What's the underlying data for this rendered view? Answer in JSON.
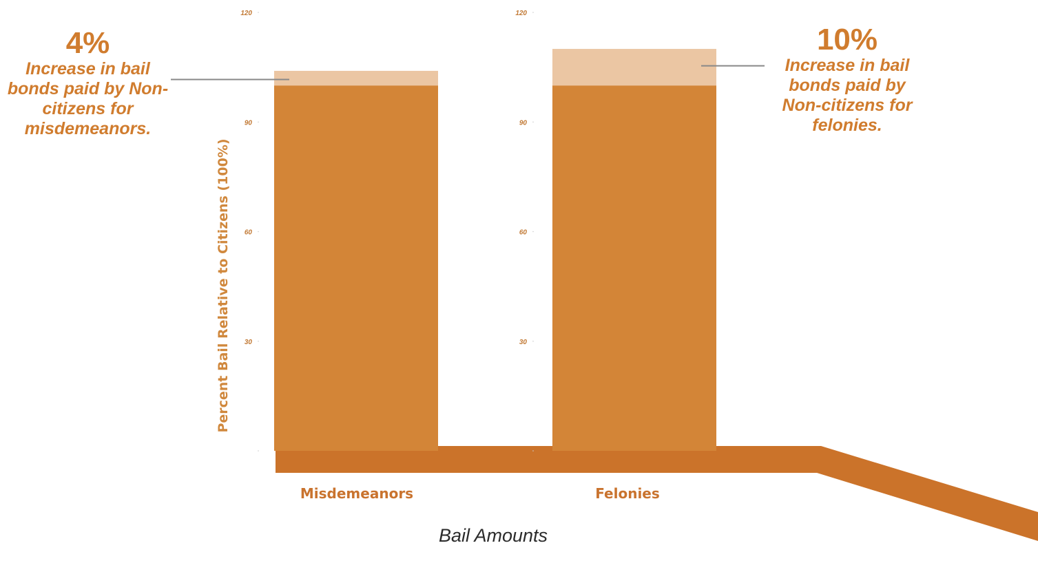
{
  "chart_data": {
    "type": "bar",
    "categories": [
      "Misdemeanors",
      "Felonies"
    ],
    "series": [
      {
        "values": [
          100,
          100
        ],
        "color": "#d38537"
      },
      {
        "values": [
          4,
          10
        ],
        "color": "#ebc6a3"
      }
    ],
    "stacked": true,
    "ylabel": "Percent Bail Relative to Citizens (100%)",
    "xlabel": "Bail Amounts",
    "ylim": [
      0,
      120
    ],
    "yticks": [
      30,
      60,
      90,
      120
    ],
    "annotations": [
      {
        "category": "Misdemeanors",
        "value": "4%",
        "text": "Increase in bail bonds paid by Non-citizens for misdemeanors."
      },
      {
        "category": "Felonies",
        "value": "10%",
        "text": "Increase in bail bonds paid by Non-citizens for felonies."
      }
    ],
    "colors": {
      "base": "#cb732a",
      "leader": "#888888",
      "tick": "#c27a36"
    }
  }
}
